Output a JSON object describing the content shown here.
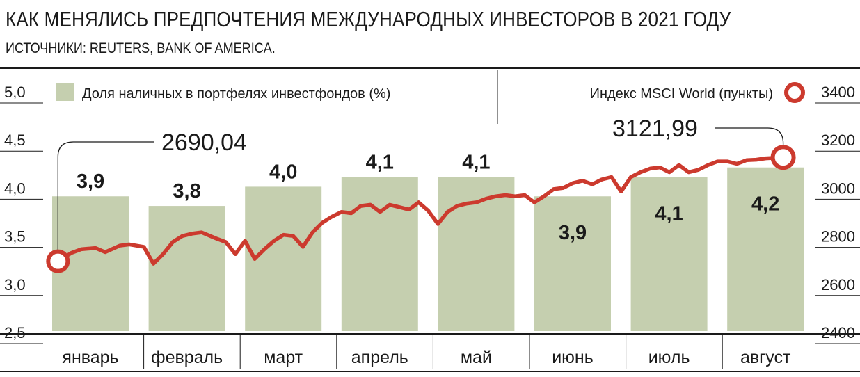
{
  "header": {
    "title": "КАК МЕНЯЛИСЬ ПРЕДПОЧТЕНИЯ МЕЖДУНАРОДНЫХ ИНВЕСТОРОВ В 2021 ГОДУ",
    "source": "ИСТОЧНИКИ: REUTERS, BANK OF AMERICA."
  },
  "chart_data": {
    "type": "bar",
    "title": "КАК МЕНЯЛИСЬ ПРЕДПОЧТЕНИЯ МЕЖДУНАРОДНЫХ ИНВЕСТОРОВ В 2021 ГОДУ",
    "categories": [
      "январь",
      "февраль",
      "март",
      "апрель",
      "май",
      "июнь",
      "июль",
      "август"
    ],
    "bars": {
      "name": "Доля наличных в портфелях инвестфондов (%)",
      "values": [
        3.9,
        3.8,
        4.0,
        4.1,
        4.1,
        3.9,
        4.1,
        4.2
      ],
      "labels": [
        "3,9",
        "3,8",
        "4,0",
        "4,1",
        "4,1",
        "3,9",
        "4,1",
        "4,2"
      ],
      "color": "#c5cfaf",
      "ylim": [
        2.5,
        5.0
      ],
      "ticks": [
        "5,0",
        "4,5",
        "4,0",
        "3,5",
        "3,0",
        "2,5"
      ]
    },
    "line": {
      "name": "Индекс MSCI World (пункты)",
      "color": "#cc3a2e",
      "ylim": [
        2400,
        3400
      ],
      "ticks": [
        "3400",
        "3200",
        "3000",
        "2800",
        "2600",
        "2400"
      ],
      "start_label": "2690,04",
      "end_label": "3121,99",
      "x": [
        0.06,
        0.2,
        0.3,
        0.45,
        0.55,
        0.7,
        0.8,
        0.95,
        1.05,
        1.15,
        1.25,
        1.35,
        1.45,
        1.55,
        1.7,
        1.8,
        1.9,
        2.0,
        2.1,
        2.2,
        2.3,
        2.4,
        2.5,
        2.6,
        2.7,
        2.8,
        2.9,
        3.0,
        3.1,
        3.2,
        3.3,
        3.4,
        3.5,
        3.6,
        3.7,
        3.8,
        3.9,
        4.0,
        4.1,
        4.2,
        4.3,
        4.4,
        4.5,
        4.6,
        4.7,
        4.8,
        4.9,
        5.0,
        5.1,
        5.2,
        5.3,
        5.4,
        5.5,
        5.6,
        5.7,
        5.8,
        5.9,
        6.0,
        6.1,
        6.2,
        6.3,
        6.4,
        6.5,
        6.6,
        6.7,
        6.8,
        6.9,
        7.0,
        7.1,
        7.2,
        7.3,
        7.4,
        7.5,
        7.58
      ],
      "values": [
        2690,
        2725,
        2740,
        2745,
        2728,
        2755,
        2760,
        2750,
        2680,
        2720,
        2770,
        2795,
        2805,
        2810,
        2785,
        2770,
        2720,
        2775,
        2700,
        2740,
        2775,
        2800,
        2795,
        2750,
        2810,
        2850,
        2875,
        2895,
        2890,
        2920,
        2925,
        2895,
        2925,
        2915,
        2905,
        2935,
        2900,
        2845,
        2895,
        2920,
        2930,
        2935,
        2950,
        2960,
        2965,
        2960,
        2965,
        2935,
        2960,
        2990,
        2995,
        3015,
        3025,
        3010,
        3030,
        3040,
        2980,
        3040,
        3060,
        3075,
        3080,
        3060,
        3090,
        3060,
        3070,
        3090,
        3105,
        3105,
        3095,
        3110,
        3112,
        3118,
        3120,
        3121.99
      ]
    },
    "grid": true,
    "legend": "top"
  }
}
